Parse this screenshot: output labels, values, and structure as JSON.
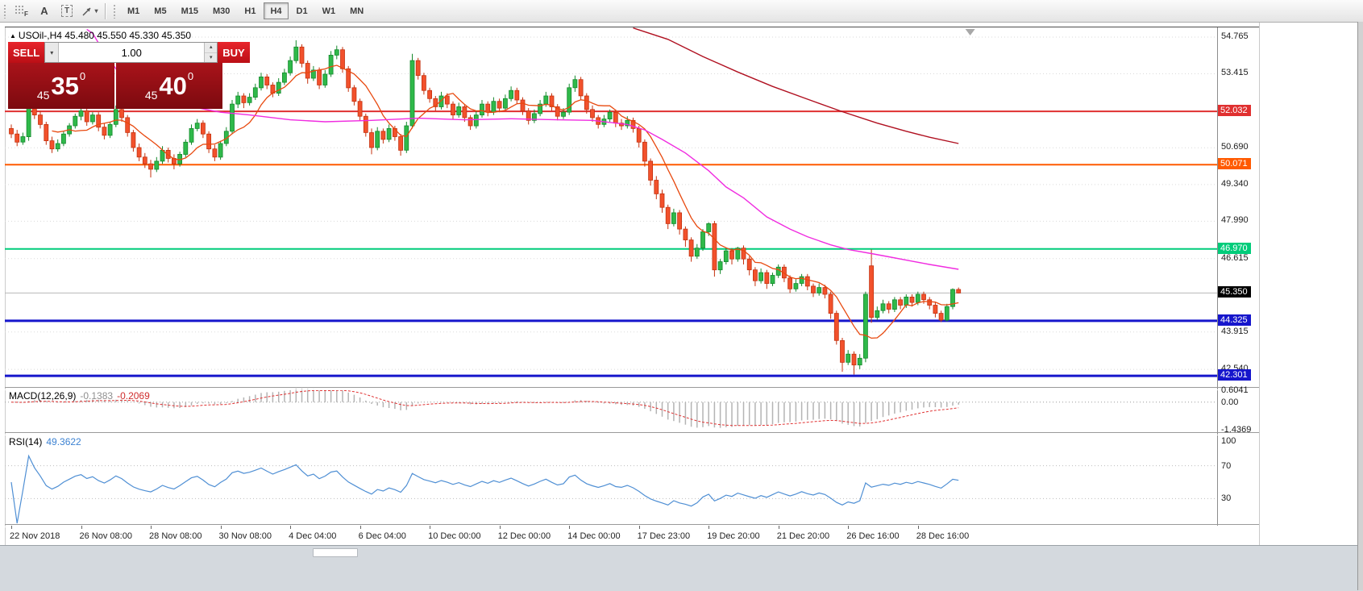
{
  "toolbar": {
    "tools": [
      {
        "name": "dots-grid-tool",
        "label": "F"
      },
      {
        "name": "text-label-tool",
        "label": "A"
      },
      {
        "name": "text-box-tool",
        "label": "T"
      }
    ],
    "timeframes": [
      "M1",
      "M5",
      "M15",
      "M30",
      "H1",
      "H4",
      "D1",
      "W1",
      "MN"
    ],
    "active_timeframe": "H4"
  },
  "quote_header": {
    "text": "USOil-,H4 45.480 45.550 45.330 45.350"
  },
  "trade_panel": {
    "sell_label": "SELL",
    "buy_label": "BUY",
    "volume": "1.00",
    "sell_price_small": "45",
    "sell_price_big": "35",
    "sell_price_sup": "0",
    "buy_price_small": "45",
    "buy_price_big": "40",
    "buy_price_sup": "0"
  },
  "price_axis": {
    "scale_labels": [
      "54.765",
      "53.415",
      "50.690",
      "49.340",
      "47.990",
      "46.615",
      "43.915",
      "42.540"
    ]
  },
  "chart_data": {
    "type": "candlestick",
    "symbol": "USOil-",
    "timeframe": "H4",
    "ylim": [
      41.89,
      55.15
    ],
    "ohlc": [
      [
        51.4,
        51.55,
        51.05,
        51.2
      ],
      [
        51.2,
        51.35,
        50.75,
        50.9
      ],
      [
        50.9,
        51.25,
        50.8,
        51.1
      ],
      [
        51.1,
        52.4,
        50.95,
        52.25
      ],
      [
        52.25,
        52.45,
        51.75,
        51.9
      ],
      [
        51.9,
        52.05,
        51.4,
        51.55
      ],
      [
        51.55,
        51.65,
        50.8,
        50.95
      ],
      [
        50.95,
        51.1,
        50.5,
        50.65
      ],
      [
        50.65,
        51.0,
        50.55,
        50.85
      ],
      [
        50.85,
        51.3,
        50.75,
        51.2
      ],
      [
        51.2,
        51.6,
        51.1,
        51.5
      ],
      [
        51.5,
        51.95,
        51.4,
        51.85
      ],
      [
        51.85,
        52.2,
        51.7,
        52.05
      ],
      [
        52.05,
        52.15,
        51.5,
        51.65
      ],
      [
        51.65,
        52.0,
        51.55,
        51.9
      ],
      [
        51.9,
        52.0,
        51.3,
        51.45
      ],
      [
        51.45,
        51.6,
        51.0,
        51.15
      ],
      [
        51.15,
        51.65,
        51.05,
        51.55
      ],
      [
        51.55,
        52.25,
        51.45,
        52.1
      ],
      [
        52.1,
        52.2,
        51.65,
        51.8
      ],
      [
        51.8,
        51.9,
        51.1,
        51.25
      ],
      [
        51.25,
        51.35,
        50.55,
        50.7
      ],
      [
        50.7,
        50.85,
        50.2,
        50.35
      ],
      [
        50.35,
        50.5,
        49.95,
        50.1
      ],
      [
        50.1,
        50.25,
        49.6,
        49.9
      ],
      [
        49.9,
        50.35,
        49.8,
        50.2
      ],
      [
        50.2,
        50.75,
        50.1,
        50.6
      ],
      [
        50.6,
        50.7,
        50.15,
        50.3
      ],
      [
        50.3,
        50.45,
        49.9,
        50.1
      ],
      [
        50.1,
        50.55,
        50.0,
        50.45
      ],
      [
        50.45,
        51.0,
        50.35,
        50.9
      ],
      [
        50.9,
        51.55,
        50.8,
        51.4
      ],
      [
        51.4,
        51.75,
        51.3,
        51.6
      ],
      [
        51.6,
        51.7,
        51.05,
        51.2
      ],
      [
        51.2,
        51.3,
        50.5,
        50.65
      ],
      [
        50.65,
        50.8,
        50.2,
        50.35
      ],
      [
        50.35,
        50.95,
        50.25,
        50.85
      ],
      [
        50.85,
        51.45,
        50.75,
        51.3
      ],
      [
        51.3,
        52.45,
        51.2,
        52.3
      ],
      [
        52.3,
        52.75,
        52.15,
        52.6
      ],
      [
        52.6,
        52.7,
        52.15,
        52.35
      ],
      [
        52.35,
        52.7,
        52.25,
        52.55
      ],
      [
        52.55,
        53.05,
        52.45,
        52.9
      ],
      [
        52.9,
        53.45,
        52.8,
        53.3
      ],
      [
        53.3,
        53.4,
        52.85,
        53.0
      ],
      [
        53.0,
        53.1,
        52.55,
        52.7
      ],
      [
        52.7,
        53.25,
        52.6,
        53.1
      ],
      [
        53.1,
        53.6,
        53.0,
        53.45
      ],
      [
        53.45,
        54.05,
        53.35,
        53.9
      ],
      [
        53.9,
        54.65,
        53.8,
        54.4
      ],
      [
        54.4,
        54.5,
        53.65,
        53.8
      ],
      [
        53.8,
        53.9,
        53.05,
        53.25
      ],
      [
        53.25,
        53.7,
        53.15,
        53.55
      ],
      [
        53.55,
        53.65,
        52.85,
        53.0
      ],
      [
        53.0,
        53.55,
        52.9,
        53.4
      ],
      [
        53.4,
        54.25,
        53.3,
        54.1
      ],
      [
        54.1,
        54.45,
        53.95,
        54.3
      ],
      [
        54.3,
        54.4,
        53.45,
        53.6
      ],
      [
        53.6,
        53.7,
        52.75,
        52.9
      ],
      [
        52.9,
        53.0,
        52.25,
        52.4
      ],
      [
        52.4,
        52.5,
        51.7,
        51.85
      ],
      [
        51.85,
        51.95,
        51.1,
        51.25
      ],
      [
        51.25,
        51.4,
        50.45,
        50.7
      ],
      [
        50.7,
        51.45,
        50.6,
        51.3
      ],
      [
        51.3,
        51.4,
        50.85,
        51.0
      ],
      [
        51.0,
        51.55,
        50.9,
        51.4
      ],
      [
        51.4,
        51.5,
        50.95,
        51.1
      ],
      [
        51.1,
        51.2,
        50.4,
        50.6
      ],
      [
        50.6,
        51.65,
        50.5,
        51.5
      ],
      [
        51.5,
        54.15,
        51.4,
        53.9
      ],
      [
        53.9,
        54.0,
        53.2,
        53.35
      ],
      [
        53.35,
        53.45,
        52.65,
        52.8
      ],
      [
        52.8,
        52.9,
        52.35,
        52.5
      ],
      [
        52.5,
        52.6,
        52.05,
        52.2
      ],
      [
        52.2,
        52.75,
        52.1,
        52.6
      ],
      [
        52.6,
        52.7,
        52.15,
        52.3
      ],
      [
        52.3,
        52.4,
        51.75,
        51.9
      ],
      [
        51.9,
        52.35,
        51.8,
        52.2
      ],
      [
        52.2,
        52.3,
        51.65,
        51.8
      ],
      [
        51.8,
        51.9,
        51.35,
        51.5
      ],
      [
        51.5,
        52.05,
        51.4,
        51.9
      ],
      [
        51.9,
        52.45,
        51.8,
        52.3
      ],
      [
        52.3,
        52.4,
        51.85,
        52.0
      ],
      [
        52.0,
        52.55,
        51.9,
        52.4
      ],
      [
        52.4,
        52.5,
        52.0,
        52.15
      ],
      [
        52.15,
        52.65,
        52.05,
        52.5
      ],
      [
        52.5,
        52.95,
        52.4,
        52.8
      ],
      [
        52.8,
        52.9,
        52.3,
        52.45
      ],
      [
        52.45,
        52.55,
        51.9,
        52.05
      ],
      [
        52.05,
        52.15,
        51.55,
        51.7
      ],
      [
        51.7,
        52.1,
        51.6,
        51.95
      ],
      [
        51.95,
        52.45,
        51.85,
        52.3
      ],
      [
        52.3,
        52.75,
        52.2,
        52.6
      ],
      [
        52.6,
        52.7,
        52.05,
        52.2
      ],
      [
        52.2,
        52.3,
        51.7,
        51.85
      ],
      [
        51.85,
        52.15,
        51.75,
        52.0
      ],
      [
        52.0,
        53.05,
        51.9,
        52.9
      ],
      [
        52.9,
        53.35,
        52.75,
        53.2
      ],
      [
        53.2,
        53.3,
        52.45,
        52.6
      ],
      [
        52.6,
        52.7,
        51.95,
        52.1
      ],
      [
        52.1,
        52.25,
        51.65,
        51.8
      ],
      [
        51.8,
        51.9,
        51.4,
        51.55
      ],
      [
        51.55,
        51.9,
        51.45,
        51.75
      ],
      [
        51.75,
        52.1,
        51.65,
        52.0
      ],
      [
        52.0,
        52.1,
        51.45,
        51.6
      ],
      [
        51.6,
        51.75,
        51.35,
        51.5
      ],
      [
        51.5,
        51.85,
        51.4,
        51.7
      ],
      [
        51.7,
        51.8,
        51.25,
        51.4
      ],
      [
        51.4,
        51.5,
        50.7,
        50.9
      ],
      [
        50.9,
        51.0,
        50.0,
        50.2
      ],
      [
        50.2,
        50.3,
        49.3,
        49.5
      ],
      [
        49.5,
        49.65,
        48.8,
        49.0
      ],
      [
        49.0,
        49.15,
        48.3,
        48.5
      ],
      [
        48.5,
        48.6,
        47.7,
        47.9
      ],
      [
        47.9,
        48.45,
        47.8,
        48.3
      ],
      [
        48.3,
        48.4,
        47.5,
        47.7
      ],
      [
        47.7,
        47.8,
        47.05,
        47.3
      ],
      [
        47.3,
        47.4,
        46.5,
        46.7
      ],
      [
        46.7,
        47.15,
        46.6,
        47.0
      ],
      [
        47.0,
        47.7,
        46.9,
        47.6
      ],
      [
        47.6,
        47.95,
        47.45,
        47.9
      ],
      [
        47.9,
        48.0,
        45.95,
        46.2
      ],
      [
        46.2,
        46.6,
        46.05,
        46.5
      ],
      [
        46.5,
        47.0,
        46.4,
        46.9
      ],
      [
        46.9,
        47.0,
        46.4,
        46.6
      ],
      [
        46.6,
        47.05,
        46.5,
        47.0
      ],
      [
        47.0,
        47.1,
        46.4,
        46.6
      ],
      [
        46.6,
        46.7,
        46.0,
        46.2
      ],
      [
        46.2,
        46.3,
        45.6,
        45.8
      ],
      [
        45.8,
        46.25,
        45.7,
        46.1
      ],
      [
        46.1,
        46.2,
        45.5,
        45.7
      ],
      [
        45.7,
        46.1,
        45.6,
        46.0
      ],
      [
        46.0,
        46.4,
        45.9,
        46.3
      ],
      [
        46.3,
        46.4,
        45.75,
        45.9
      ],
      [
        45.9,
        46.0,
        45.35,
        45.5
      ],
      [
        45.5,
        45.85,
        45.4,
        45.7
      ],
      [
        45.7,
        46.05,
        45.6,
        45.95
      ],
      [
        45.95,
        46.05,
        45.45,
        45.6
      ],
      [
        45.6,
        45.7,
        45.2,
        45.35
      ],
      [
        45.35,
        45.7,
        45.25,
        45.55
      ],
      [
        45.55,
        45.65,
        45.15,
        45.3
      ],
      [
        45.3,
        45.4,
        44.4,
        44.6
      ],
      [
        44.6,
        44.7,
        43.45,
        43.6
      ],
      [
        43.6,
        43.7,
        42.45,
        42.8
      ],
      [
        42.8,
        43.25,
        42.7,
        43.1
      ],
      [
        43.1,
        43.2,
        42.35,
        42.7
      ],
      [
        42.7,
        43.1,
        42.55,
        42.95
      ],
      [
        42.95,
        45.4,
        42.8,
        45.3
      ],
      [
        46.35,
        46.95,
        44.25,
        44.45
      ],
      [
        44.45,
        44.85,
        44.35,
        44.7
      ],
      [
        44.7,
        45.1,
        44.6,
        44.95
      ],
      [
        44.95,
        45.05,
        44.6,
        44.75
      ],
      [
        44.75,
        45.2,
        44.65,
        45.1
      ],
      [
        45.1,
        45.2,
        44.75,
        44.9
      ],
      [
        44.9,
        45.3,
        44.8,
        45.2
      ],
      [
        45.2,
        45.3,
        44.85,
        45.0
      ],
      [
        45.0,
        45.4,
        44.9,
        45.3
      ],
      [
        45.3,
        45.4,
        44.95,
        45.1
      ],
      [
        45.1,
        45.2,
        44.75,
        44.9
      ],
      [
        44.9,
        45.0,
        44.45,
        44.6
      ],
      [
        44.6,
        44.7,
        44.28,
        44.35
      ],
      [
        44.35,
        44.95,
        44.3,
        44.85
      ],
      [
        44.85,
        45.52,
        44.75,
        45.48
      ],
      [
        45.48,
        45.55,
        45.33,
        45.35
      ]
    ],
    "time_labels": [
      {
        "i": 0,
        "t": "22 Nov 2018"
      },
      {
        "i": 12,
        "t": "26 Nov 08:00"
      },
      {
        "i": 24,
        "t": "28 Nov 08:00"
      },
      {
        "i": 36,
        "t": "30 Nov 08:00"
      },
      {
        "i": 48,
        "t": "4 Dec 04:00"
      },
      {
        "i": 60,
        "t": "6 Dec 04:00"
      },
      {
        "i": 72,
        "t": "10 Dec 00:00"
      },
      {
        "i": 84,
        "t": "12 Dec 00:00"
      },
      {
        "i": 96,
        "t": "14 Dec 00:00"
      },
      {
        "i": 108,
        "t": "17 Dec 23:00"
      },
      {
        "i": 120,
        "t": "19 Dec 20:00"
      },
      {
        "i": 132,
        "t": "21 Dec 20:00"
      },
      {
        "i": 144,
        "t": "26 Dec 16:00"
      },
      {
        "i": 156,
        "t": "28 Dec 16:00"
      }
    ],
    "hlines": [
      {
        "price": 52.032,
        "color": "#e03030",
        "width": 2,
        "dash": false,
        "tag": "52.032",
        "tag_bg": "#e03030"
      },
      {
        "price": 50.071,
        "color": "#ff5a00",
        "width": 2,
        "dash": false,
        "tag": "50.071",
        "tag_bg": "#ff5a00"
      },
      {
        "price": 46.97,
        "color": "#00cc7a",
        "width": 2,
        "dash": false,
        "tag": "46.970",
        "tag_bg": "#00cc7a"
      },
      {
        "price": 45.35,
        "color": "#b8b8b8",
        "width": 1,
        "dash": false,
        "tag": "45.350",
        "tag_bg": "#000000"
      },
      {
        "price": 44.325,
        "color": "#1616cc",
        "width": 3,
        "dash": false,
        "tag": "44.325",
        "tag_bg": "#1616cc"
      },
      {
        "price": 42.301,
        "color": "#1616cc",
        "width": 3,
        "dash": false,
        "tag": "42.301",
        "tag_bg": "#1616cc"
      }
    ],
    "candle_colors": {
      "bull": "#2fb94a",
      "bull_border": "#14892c",
      "bear": "#f2512c",
      "bear_border": "#c4320f"
    },
    "ma_fast": {
      "period": 8,
      "color": "#e8490f"
    },
    "ma_lines": [
      {
        "name": "ma-magenta",
        "color": "#f02ce0",
        "points": [
          [
            13,
            55.05
          ],
          [
            14,
            54.9
          ],
          [
            16,
            54.2
          ],
          [
            19,
            53.3
          ],
          [
            22,
            52.9
          ],
          [
            26,
            52.6
          ],
          [
            31,
            52.2
          ],
          [
            36,
            52.0
          ],
          [
            41,
            51.9
          ],
          [
            48,
            51.72
          ],
          [
            54,
            51.65
          ],
          [
            62,
            51.7
          ],
          [
            70,
            51.78
          ],
          [
            78,
            51.72
          ],
          [
            86,
            51.76
          ],
          [
            94,
            51.72
          ],
          [
            100,
            51.7
          ],
          [
            106,
            51.55
          ],
          [
            109,
            51.35
          ],
          [
            112,
            51.0
          ],
          [
            116,
            50.5
          ],
          [
            120,
            49.85
          ],
          [
            123,
            49.25
          ],
          [
            126,
            48.85
          ],
          [
            130,
            48.15
          ],
          [
            134,
            47.7
          ],
          [
            137,
            47.42
          ],
          [
            141,
            47.12
          ],
          [
            144,
            46.95
          ],
          [
            148,
            46.8
          ],
          [
            151,
            46.68
          ],
          [
            155,
            46.52
          ],
          [
            158,
            46.4
          ],
          [
            163,
            46.22
          ]
        ]
      },
      {
        "name": "ma-slow",
        "color": "#b01020",
        "points": [
          [
            107,
            55.1
          ],
          [
            113,
            54.68
          ],
          [
            119,
            54.05
          ],
          [
            125,
            53.48
          ],
          [
            131,
            52.95
          ],
          [
            137,
            52.48
          ],
          [
            143,
            52.02
          ],
          [
            149,
            51.6
          ],
          [
            154,
            51.3
          ],
          [
            158,
            51.08
          ],
          [
            163,
            50.85
          ]
        ]
      }
    ],
    "macd": {
      "label": "MACD(12,26,9)",
      "main_value": "-0.1383",
      "signal_value": "-0.2069",
      "axis_labels": [
        "0.6041",
        "0.00",
        "-1.4369"
      ],
      "range": [
        -1.55,
        0.7
      ],
      "fast": 12,
      "slow": 26,
      "signal": 9,
      "hist_color": "#b4b4b4",
      "signal_color": "#e03131"
    },
    "rsi": {
      "label": "RSI(14)",
      "value": "49.3622",
      "period": 14,
      "levels": [
        "100",
        "70",
        "30"
      ],
      "line_color": "#4f8fd4"
    }
  }
}
